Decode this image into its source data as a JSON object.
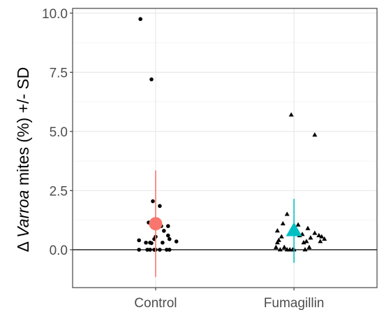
{
  "chart_data": {
    "type": "scatter",
    "title": "",
    "xlabel": "",
    "ylabel": {
      "prefix": "Δ ",
      "italic": "Varroa",
      "suffix": " mites (%) +/- SD"
    },
    "categories": [
      "Control",
      "Fumagillin"
    ],
    "ylim": [
      -1.6,
      10.2
    ],
    "yticks": [
      0.0,
      2.5,
      5.0,
      7.5,
      10.0
    ],
    "ytick_labels": [
      "0.0",
      "2.5",
      "5.0",
      "7.5",
      "10.0"
    ],
    "reference_line": 0,
    "grid": true,
    "legend": "none",
    "series": [
      {
        "category": "Control",
        "marker": "circle",
        "point_color": "#000000",
        "points": [
          {
            "jitter": -0.11,
            "y": 9.75
          },
          {
            "jitter": -0.03,
            "y": 7.2
          },
          {
            "jitter": -0.02,
            "y": 2.05
          },
          {
            "jitter": 0.03,
            "y": 1.85
          },
          {
            "jitter": -0.05,
            "y": 1.15
          },
          {
            "jitter": 0.04,
            "y": 1.0
          },
          {
            "jitter": 0.09,
            "y": 1.0
          },
          {
            "jitter": 0.06,
            "y": 0.8
          },
          {
            "jitter": 0.09,
            "y": 0.6
          },
          {
            "jitter": 0.0,
            "y": 0.55
          },
          {
            "jitter": -0.12,
            "y": 0.4
          },
          {
            "jitter": -0.01,
            "y": 0.45
          },
          {
            "jitter": 0.1,
            "y": 0.45
          },
          {
            "jitter": 0.15,
            "y": 0.35
          },
          {
            "jitter": -0.07,
            "y": 0.3
          },
          {
            "jitter": -0.04,
            "y": 0.3
          },
          {
            "jitter": -0.03,
            "y": 0.28
          },
          {
            "jitter": 0.05,
            "y": 0.3
          },
          {
            "jitter": -0.12,
            "y": 0.0
          },
          {
            "jitter": -0.06,
            "y": 0.0
          },
          {
            "jitter": -0.04,
            "y": 0.0
          },
          {
            "jitter": -0.01,
            "y": 0.0
          },
          {
            "jitter": 0.0,
            "y": 0.0
          },
          {
            "jitter": 0.03,
            "y": 0.0
          },
          {
            "jitter": 0.08,
            "y": 0.0
          },
          {
            "jitter": 0.1,
            "y": 0.0
          }
        ],
        "mean": 1.1,
        "sd": 2.25,
        "mean_color": "#f8766d"
      },
      {
        "category": "Fumagillin",
        "marker": "triangle",
        "point_color": "#000000",
        "points": [
          {
            "jitter": -0.02,
            "y": 5.7
          },
          {
            "jitter": 0.15,
            "y": 4.85
          },
          {
            "jitter": -0.05,
            "y": 1.5
          },
          {
            "jitter": -0.08,
            "y": 1.1
          },
          {
            "jitter": 0.03,
            "y": 1.05
          },
          {
            "jitter": 0.1,
            "y": 0.9
          },
          {
            "jitter": -0.12,
            "y": 0.8
          },
          {
            "jitter": 0.0,
            "y": 0.75
          },
          {
            "jitter": 0.06,
            "y": 0.65
          },
          {
            "jitter": 0.15,
            "y": 0.7
          },
          {
            "jitter": 0.18,
            "y": 0.6
          },
          {
            "jitter": -0.09,
            "y": 0.55
          },
          {
            "jitter": 0.04,
            "y": 0.6
          },
          {
            "jitter": 0.12,
            "y": 0.5
          },
          {
            "jitter": 0.2,
            "y": 0.55
          },
          {
            "jitter": 0.22,
            "y": 0.45
          },
          {
            "jitter": -0.11,
            "y": 0.4
          },
          {
            "jitter": 0.09,
            "y": 0.35
          },
          {
            "jitter": 0.19,
            "y": 0.35
          },
          {
            "jitter": -0.12,
            "y": 0.3
          },
          {
            "jitter": 0.07,
            "y": 0.3
          },
          {
            "jitter": -0.13,
            "y": 0.1
          },
          {
            "jitter": -0.07,
            "y": 0.1
          },
          {
            "jitter": 0.11,
            "y": 0.1
          },
          {
            "jitter": -0.1,
            "y": 0.0
          },
          {
            "jitter": -0.05,
            "y": 0.0
          },
          {
            "jitter": -0.03,
            "y": 0.0
          },
          {
            "jitter": -0.01,
            "y": 0.0
          },
          {
            "jitter": 0.0,
            "y": 0.0
          },
          {
            "jitter": 0.08,
            "y": 0.0
          }
        ],
        "mean": 0.8,
        "sd": 1.35,
        "mean_color": "#00bfc4"
      }
    ]
  }
}
